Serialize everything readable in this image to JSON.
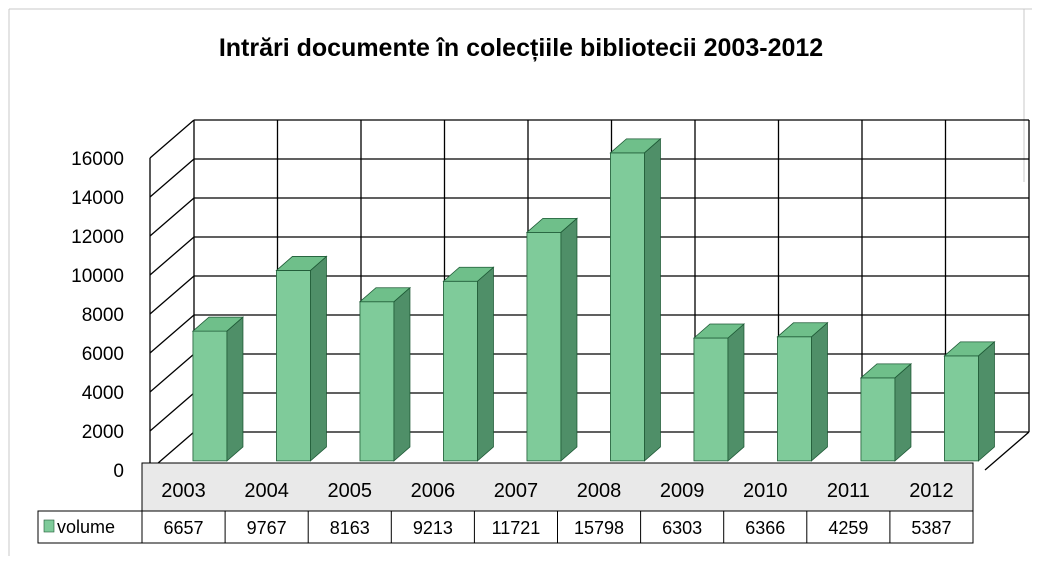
{
  "chart_data": {
    "type": "bar",
    "title": "Intrări documente  în colecțiile bibliotecii 2003-2012",
    "categories": [
      "2003",
      "2004",
      "2005",
      "2006",
      "2007",
      "2008",
      "2009",
      "2010",
      "2011",
      "2012"
    ],
    "series": [
      {
        "name": "volume",
        "values": [
          6657,
          9767,
          8163,
          9213,
          11721,
          15798,
          6303,
          6366,
          4259,
          5387
        ]
      }
    ],
    "xlabel": "",
    "ylabel": "",
    "ylim": [
      0,
      16000
    ],
    "yticks": [
      "0",
      "2000",
      "4000",
      "6000",
      "8000",
      "10000",
      "12000",
      "14000",
      "16000"
    ],
    "grid": true,
    "legend": "data-table",
    "style_3d": true,
    "colors": {
      "bar_front": "#7fcb9a",
      "bar_side": "#4f8f68",
      "bar_top": "#6fbf8a",
      "bar_edge": "#1e5a36",
      "legend_swatch": "#7fcb9a",
      "category_band": "#e9e9e9",
      "grid": "#000000",
      "background": "#ffffff"
    }
  }
}
